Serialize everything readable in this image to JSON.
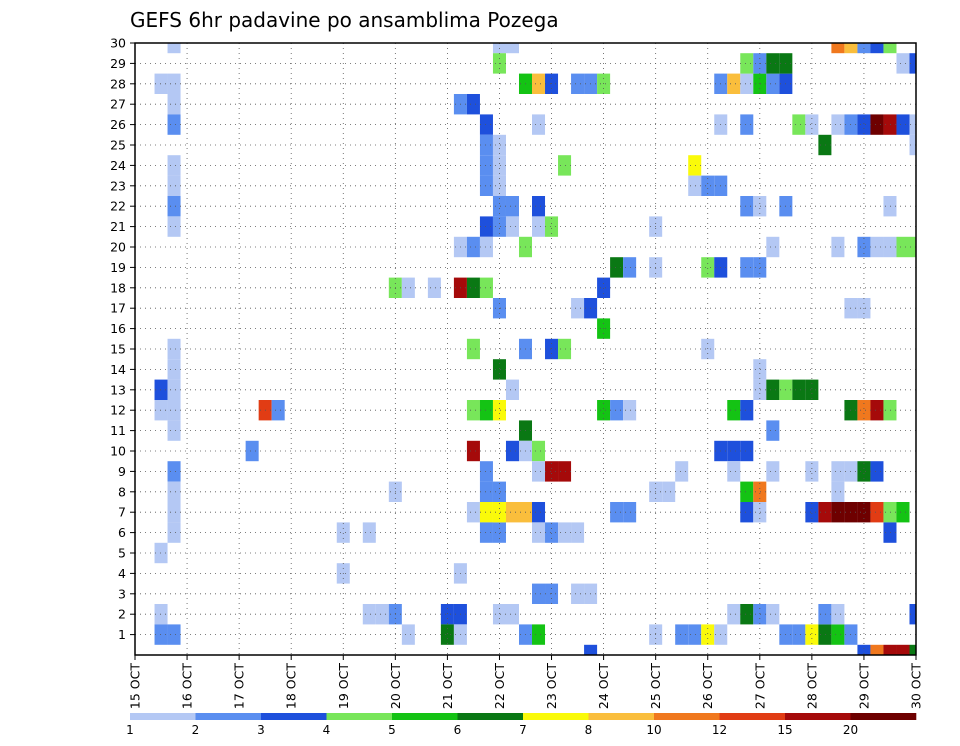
{
  "chart_data": {
    "type": "heatmap",
    "title": "GEFS 6hr padavine po ansamblima Pozega",
    "xlabel": "",
    "ylabel": "",
    "x_ticks": [
      "15 OCT",
      "16 OCT",
      "17 OCT",
      "18 OCT",
      "19 OCT",
      "20 OCT",
      "21 OCT",
      "22 OCT",
      "23 OCT",
      "24 OCT",
      "25 OCT",
      "26 OCT",
      "27 OCT",
      "28 OCT",
      "29 OCT",
      "30 OCT"
    ],
    "y_ticks": [
      1,
      2,
      3,
      4,
      5,
      6,
      7,
      8,
      9,
      10,
      11,
      12,
      13,
      14,
      15,
      16,
      17,
      18,
      19,
      20,
      21,
      22,
      23,
      24,
      25,
      26,
      27,
      28,
      29,
      30
    ],
    "xlim": [
      0,
      15
    ],
    "ylim": [
      0,
      30
    ],
    "grid": true,
    "legend_placement": "bottom",
    "colorbar": {
      "labels": [
        "1",
        "2",
        "3",
        "4",
        "5",
        "6",
        "7",
        "8",
        "10",
        "12",
        "15",
        "20"
      ],
      "colors": [
        "#b4c8f4",
        "#5a8ef0",
        "#1e50dc",
        "#78e65a",
        "#14c314",
        "#0a7814",
        "#fafa0a",
        "#fabe3c",
        "#f0781e",
        "#e13c14",
        "#a50a0a",
        "#6e0000"
      ]
    },
    "cells": [
      {
        "x": 0.75,
        "m": 30,
        "c": 1
      },
      {
        "x": 0.75,
        "m": 28,
        "c": 1
      },
      {
        "x": 0.5,
        "m": 28,
        "c": 1
      },
      {
        "x": 0.75,
        "m": 27,
        "c": 1
      },
      {
        "x": 0.75,
        "m": 26,
        "c": 2
      },
      {
        "x": 0.75,
        "m": 24,
        "c": 1
      },
      {
        "x": 0.75,
        "m": 23,
        "c": 1
      },
      {
        "x": 0.75,
        "m": 22,
        "c": 2
      },
      {
        "x": 0.75,
        "m": 21,
        "c": 1
      },
      {
        "x": 0.75,
        "m": 15,
        "c": 1
      },
      {
        "x": 0.75,
        "m": 14,
        "c": 1
      },
      {
        "x": 0.5,
        "m": 13,
        "c": 3
      },
      {
        "x": 0.5,
        "m": 12,
        "c": 1
      },
      {
        "x": 0.75,
        "m": 12,
        "c": 1
      },
      {
        "x": 0.75,
        "m": 13,
        "c": 1
      },
      {
        "x": 0.75,
        "m": 11,
        "c": 1
      },
      {
        "x": 0.75,
        "m": 9,
        "c": 2
      },
      {
        "x": 0.75,
        "m": 8,
        "c": 1
      },
      {
        "x": 0.75,
        "m": 7,
        "c": 1
      },
      {
        "x": 0.75,
        "m": 6,
        "c": 1
      },
      {
        "x": 0.5,
        "m": 5,
        "c": 1
      },
      {
        "x": 0.5,
        "m": 2,
        "c": 1
      },
      {
        "x": 0.5,
        "m": 1,
        "c": 2
      },
      {
        "x": 0.75,
        "m": 1,
        "c": 2
      },
      {
        "x": 2.5,
        "m": 12,
        "c": 10
      },
      {
        "x": 2.75,
        "m": 12,
        "c": 2
      },
      {
        "x": 2.25,
        "m": 10,
        "c": 2
      },
      {
        "x": 4.0,
        "m": 6,
        "c": 1
      },
      {
        "x": 4.5,
        "m": 6,
        "c": 1
      },
      {
        "x": 4.0,
        "m": 4,
        "c": 1
      },
      {
        "x": 4.5,
        "m": 2,
        "c": 1
      },
      {
        "x": 4.75,
        "m": 2,
        "c": 1
      },
      {
        "x": 5.0,
        "m": 18,
        "c": 4
      },
      {
        "x": 5.25,
        "m": 18,
        "c": 1
      },
      {
        "x": 5.75,
        "m": 18,
        "c": 1
      },
      {
        "x": 5.0,
        "m": 8,
        "c": 1
      },
      {
        "x": 5.0,
        "m": 2,
        "c": 2
      },
      {
        "x": 5.25,
        "m": 1,
        "c": 1
      },
      {
        "x": 6.0,
        "m": 2,
        "c": 3
      },
      {
        "x": 6.25,
        "m": 2,
        "c": 3
      },
      {
        "x": 6.0,
        "m": 1,
        "c": 6
      },
      {
        "x": 6.25,
        "m": 1,
        "c": 1
      },
      {
        "x": 6.25,
        "m": 4,
        "c": 1
      },
      {
        "x": 6.25,
        "m": 27,
        "c": 2
      },
      {
        "x": 6.5,
        "m": 27,
        "c": 3
      },
      {
        "x": 6.75,
        "m": 26,
        "c": 3
      },
      {
        "x": 6.75,
        "m": 25,
        "c": 2
      },
      {
        "x": 7.0,
        "m": 25,
        "c": 1
      },
      {
        "x": 6.75,
        "m": 24,
        "c": 2
      },
      {
        "x": 7.0,
        "m": 24,
        "c": 1
      },
      {
        "x": 6.75,
        "m": 23,
        "c": 2
      },
      {
        "x": 7.0,
        "m": 23,
        "c": 1
      },
      {
        "x": 7.0,
        "m": 22,
        "c": 2
      },
      {
        "x": 6.75,
        "m": 21,
        "c": 3
      },
      {
        "x": 7.0,
        "m": 21,
        "c": 2
      },
      {
        "x": 6.25,
        "m": 20,
        "c": 1
      },
      {
        "x": 6.5,
        "m": 20,
        "c": 2
      },
      {
        "x": 6.75,
        "m": 20,
        "c": 1
      },
      {
        "x": 6.25,
        "m": 18,
        "c": 11
      },
      {
        "x": 6.5,
        "m": 18,
        "c": 6
      },
      {
        "x": 6.75,
        "m": 18,
        "c": 4
      },
      {
        "x": 7.0,
        "m": 17,
        "c": 2
      },
      {
        "x": 6.5,
        "m": 15,
        "c": 4
      },
      {
        "x": 7.0,
        "m": 14,
        "c": 6
      },
      {
        "x": 6.5,
        "m": 12,
        "c": 4
      },
      {
        "x": 6.75,
        "m": 12,
        "c": 5
      },
      {
        "x": 7.0,
        "m": 12,
        "c": 7
      },
      {
        "x": 6.5,
        "m": 10,
        "c": 11
      },
      {
        "x": 6.75,
        "m": 9,
        "c": 2
      },
      {
        "x": 6.75,
        "m": 8,
        "c": 2
      },
      {
        "x": 7.0,
        "m": 8,
        "c": 2
      },
      {
        "x": 6.5,
        "m": 7,
        "c": 1
      },
      {
        "x": 6.75,
        "m": 7,
        "c": 7
      },
      {
        "x": 6.75,
        "m": 6,
        "c": 2
      },
      {
        "x": 7.0,
        "m": 6,
        "c": 2
      },
      {
        "x": 7.0,
        "m": 2,
        "c": 1
      },
      {
        "x": 7.25,
        "m": 2,
        "c": 1
      },
      {
        "x": 7.0,
        "m": 30,
        "c": 1
      },
      {
        "x": 7.25,
        "m": 30,
        "c": 1
      },
      {
        "x": 7.0,
        "m": 29,
        "c": 4
      },
      {
        "x": 7.5,
        "m": 28,
        "c": 5
      },
      {
        "x": 7.75,
        "m": 28,
        "c": 8
      },
      {
        "x": 8.0,
        "m": 28,
        "c": 3
      },
      {
        "x": 8.5,
        "m": 28,
        "c": 2
      },
      {
        "x": 8.75,
        "m": 28,
        "c": 2
      },
      {
        "x": 9.0,
        "m": 28,
        "c": 4
      },
      {
        "x": 7.75,
        "m": 26,
        "c": 1
      },
      {
        "x": 7.25,
        "m": 22,
        "c": 2
      },
      {
        "x": 7.75,
        "m": 22,
        "c": 3
      },
      {
        "x": 7.25,
        "m": 21,
        "c": 1
      },
      {
        "x": 7.75,
        "m": 21,
        "c": 1
      },
      {
        "x": 8.0,
        "m": 21,
        "c": 4
      },
      {
        "x": 7.5,
        "m": 20,
        "c": 4
      },
      {
        "x": 7.5,
        "m": 15,
        "c": 2
      },
      {
        "x": 8.0,
        "m": 15,
        "c": 3
      },
      {
        "x": 8.25,
        "m": 15,
        "c": 4
      },
      {
        "x": 7.5,
        "m": 11,
        "c": 6
      },
      {
        "x": 7.25,
        "m": 13,
        "c": 1
      },
      {
        "x": 7.25,
        "m": 10,
        "c": 3
      },
      {
        "x": 7.5,
        "m": 10,
        "c": 1
      },
      {
        "x": 7.75,
        "m": 10,
        "c": 4
      },
      {
        "x": 7.75,
        "m": 9,
        "c": 1
      },
      {
        "x": 8.0,
        "m": 9,
        "c": 11
      },
      {
        "x": 8.25,
        "m": 9,
        "c": 11
      },
      {
        "x": 7.0,
        "m": 7,
        "c": 7
      },
      {
        "x": 7.25,
        "m": 7,
        "c": 8
      },
      {
        "x": 7.5,
        "m": 7,
        "c": 8
      },
      {
        "x": 7.75,
        "m": 7,
        "c": 3
      },
      {
        "x": 7.75,
        "m": 6,
        "c": 1
      },
      {
        "x": 8.0,
        "m": 6,
        "c": 2
      },
      {
        "x": 8.25,
        "m": 6,
        "c": 1
      },
      {
        "x": 8.5,
        "m": 6,
        "c": 1
      },
      {
        "x": 7.75,
        "m": 3,
        "c": 2
      },
      {
        "x": 8.0,
        "m": 3,
        "c": 2
      },
      {
        "x": 8.5,
        "m": 3,
        "c": 1
      },
      {
        "x": 8.75,
        "m": 3,
        "c": 1
      },
      {
        "x": 7.5,
        "m": 1,
        "c": 2
      },
      {
        "x": 7.75,
        "m": 1,
        "c": 5
      },
      {
        "x": 8.75,
        "m": 0,
        "c": 3
      },
      {
        "x": 8.25,
        "m": 24,
        "c": 4
      },
      {
        "x": 8.5,
        "m": 17,
        "c": 1
      },
      {
        "x": 8.75,
        "m": 17,
        "c": 3
      },
      {
        "x": 9.0,
        "m": 16,
        "c": 5
      },
      {
        "x": 9.0,
        "m": 18,
        "c": 3
      },
      {
        "x": 9.25,
        "m": 19,
        "c": 6
      },
      {
        "x": 9.5,
        "m": 19,
        "c": 2
      },
      {
        "x": 10.0,
        "m": 19,
        "c": 1
      },
      {
        "x": 9.0,
        "m": 12,
        "c": 5
      },
      {
        "x": 9.25,
        "m": 12,
        "c": 2
      },
      {
        "x": 9.5,
        "m": 12,
        "c": 1
      },
      {
        "x": 9.25,
        "m": 7,
        "c": 2
      },
      {
        "x": 9.5,
        "m": 7,
        "c": 2
      },
      {
        "x": 10.0,
        "m": 8,
        "c": 1
      },
      {
        "x": 10.25,
        "m": 8,
        "c": 1
      },
      {
        "x": 10.5,
        "m": 9,
        "c": 1
      },
      {
        "x": 10.0,
        "m": 21,
        "c": 1
      },
      {
        "x": 10.0,
        "m": 1,
        "c": 1
      },
      {
        "x": 10.5,
        "m": 1,
        "c": 2
      },
      {
        "x": 10.75,
        "m": 1,
        "c": 2
      },
      {
        "x": 11.0,
        "m": 1,
        "c": 7
      },
      {
        "x": 11.25,
        "m": 1,
        "c": 1
      },
      {
        "x": 10.75,
        "m": 24,
        "c": 7
      },
      {
        "x": 10.75,
        "m": 23,
        "c": 1
      },
      {
        "x": 11.0,
        "m": 23,
        "c": 2
      },
      {
        "x": 11.25,
        "m": 23,
        "c": 2
      },
      {
        "x": 11.0,
        "m": 19,
        "c": 4
      },
      {
        "x": 11.25,
        "m": 19,
        "c": 3
      },
      {
        "x": 11.0,
        "m": 15,
        "c": 1
      },
      {
        "x": 11.25,
        "m": 10,
        "c": 3
      },
      {
        "x": 11.5,
        "m": 10,
        "c": 3
      },
      {
        "x": 11.75,
        "m": 10,
        "c": 3
      },
      {
        "x": 11.25,
        "m": 28,
        "c": 2
      },
      {
        "x": 11.5,
        "m": 28,
        "c": 8
      },
      {
        "x": 11.75,
        "m": 28,
        "c": 1
      },
      {
        "x": 12.0,
        "m": 28,
        "c": 5
      },
      {
        "x": 12.25,
        "m": 28,
        "c": 2
      },
      {
        "x": 12.5,
        "m": 28,
        "c": 3
      },
      {
        "x": 11.25,
        "m": 26,
        "c": 1
      },
      {
        "x": 11.75,
        "m": 26,
        "c": 2
      },
      {
        "x": 11.75,
        "m": 22,
        "c": 2
      },
      {
        "x": 12.0,
        "m": 22,
        "c": 1
      },
      {
        "x": 11.75,
        "m": 19,
        "c": 2
      },
      {
        "x": 12.0,
        "m": 19,
        "c": 2
      },
      {
        "x": 12.25,
        "m": 20,
        "c": 1
      },
      {
        "x": 11.5,
        "m": 12,
        "c": 5
      },
      {
        "x": 11.75,
        "m": 12,
        "c": 3
      },
      {
        "x": 12.0,
        "m": 14,
        "c": 1
      },
      {
        "x": 12.0,
        "m": 13,
        "c": 1
      },
      {
        "x": 11.5,
        "m": 9,
        "c": 1
      },
      {
        "x": 11.75,
        "m": 8,
        "c": 5
      },
      {
        "x": 12.0,
        "m": 8,
        "c": 9
      },
      {
        "x": 11.75,
        "m": 7,
        "c": 3
      },
      {
        "x": 12.0,
        "m": 7,
        "c": 1
      },
      {
        "x": 11.5,
        "m": 2,
        "c": 1
      },
      {
        "x": 11.75,
        "m": 2,
        "c": 6
      },
      {
        "x": 12.0,
        "m": 2,
        "c": 2
      },
      {
        "x": 12.25,
        "m": 2,
        "c": 1
      },
      {
        "x": 11.75,
        "m": 29,
        "c": 4
      },
      {
        "x": 12.0,
        "m": 29,
        "c": 2
      },
      {
        "x": 12.25,
        "m": 29,
        "c": 6
      },
      {
        "x": 12.5,
        "m": 29,
        "c": 6
      },
      {
        "x": 12.25,
        "m": 11,
        "c": 2
      },
      {
        "x": 12.25,
        "m": 9,
        "c": 1
      },
      {
        "x": 12.5,
        "m": 22,
        "c": 2
      },
      {
        "x": 12.25,
        "m": 13,
        "c": 6
      },
      {
        "x": 12.5,
        "m": 13,
        "c": 4
      },
      {
        "x": 12.75,
        "m": 13,
        "c": 6
      },
      {
        "x": 13.0,
        "m": 13,
        "c": 6
      },
      {
        "x": 12.5,
        "m": 1,
        "c": 2
      },
      {
        "x": 12.75,
        "m": 1,
        "c": 2
      },
      {
        "x": 13.0,
        "m": 1,
        "c": 7
      },
      {
        "x": 13.25,
        "m": 1,
        "c": 6
      },
      {
        "x": 13.5,
        "m": 1,
        "c": 5
      },
      {
        "x": 13.75,
        "m": 1,
        "c": 2
      },
      {
        "x": 12.75,
        "m": 26,
        "c": 4
      },
      {
        "x": 13.0,
        "m": 26,
        "c": 1
      },
      {
        "x": 13.5,
        "m": 26,
        "c": 1
      },
      {
        "x": 13.75,
        "m": 26,
        "c": 2
      },
      {
        "x": 14.0,
        "m": 26,
        "c": 3
      },
      {
        "x": 14.25,
        "m": 26,
        "c": 12
      },
      {
        "x": 14.5,
        "m": 26,
        "c": 11
      },
      {
        "x": 14.75,
        "m": 26,
        "c": 3
      },
      {
        "x": 15.0,
        "m": 26,
        "c": 1
      },
      {
        "x": 13.25,
        "m": 25,
        "c": 6
      },
      {
        "x": 13.5,
        "m": 30,
        "c": 9
      },
      {
        "x": 13.75,
        "m": 30,
        "c": 8
      },
      {
        "x": 14.0,
        "m": 30,
        "c": 2
      },
      {
        "x": 14.25,
        "m": 30,
        "c": 3
      },
      {
        "x": 14.5,
        "m": 30,
        "c": 4
      },
      {
        "x": 14.0,
        "m": 20,
        "c": 2
      },
      {
        "x": 14.25,
        "m": 20,
        "c": 1
      },
      {
        "x": 14.5,
        "m": 20,
        "c": 1
      },
      {
        "x": 14.75,
        "m": 20,
        "c": 4
      },
      {
        "x": 15.0,
        "m": 20,
        "c": 4
      },
      {
        "x": 13.5,
        "m": 20,
        "c": 1
      },
      {
        "x": 14.5,
        "m": 22,
        "c": 1
      },
      {
        "x": 13.75,
        "m": 17,
        "c": 1
      },
      {
        "x": 14.0,
        "m": 17,
        "c": 1
      },
      {
        "x": 13.0,
        "m": 9,
        "c": 1
      },
      {
        "x": 13.5,
        "m": 9,
        "c": 1
      },
      {
        "x": 13.75,
        "m": 9,
        "c": 1
      },
      {
        "x": 14.0,
        "m": 9,
        "c": 6
      },
      {
        "x": 14.25,
        "m": 9,
        "c": 3
      },
      {
        "x": 13.5,
        "m": 8,
        "c": 1
      },
      {
        "x": 13.0,
        "m": 7,
        "c": 3
      },
      {
        "x": 13.25,
        "m": 7,
        "c": 11
      },
      {
        "x": 13.5,
        "m": 7,
        "c": 12
      },
      {
        "x": 13.75,
        "m": 7,
        "c": 12
      },
      {
        "x": 14.0,
        "m": 7,
        "c": 12
      },
      {
        "x": 14.25,
        "m": 7,
        "c": 10
      },
      {
        "x": 14.5,
        "m": 7,
        "c": 4
      },
      {
        "x": 14.75,
        "m": 7,
        "c": 5
      },
      {
        "x": 14.5,
        "m": 6,
        "c": 3
      },
      {
        "x": 13.75,
        "m": 12,
        "c": 6
      },
      {
        "x": 14.0,
        "m": 12,
        "c": 9
      },
      {
        "x": 14.25,
        "m": 12,
        "c": 11
      },
      {
        "x": 14.5,
        "m": 12,
        "c": 4
      },
      {
        "x": 13.25,
        "m": 2,
        "c": 2
      },
      {
        "x": 13.5,
        "m": 2,
        "c": 1
      },
      {
        "x": 14.0,
        "m": 0,
        "c": 3
      },
      {
        "x": 14.25,
        "m": 0,
        "c": 9
      },
      {
        "x": 14.5,
        "m": 0,
        "c": 11
      },
      {
        "x": 14.75,
        "m": 0,
        "c": 11
      },
      {
        "x": 15.0,
        "m": 0,
        "c": 6
      },
      {
        "x": 15.0,
        "m": 29,
        "c": 3
      },
      {
        "x": 14.75,
        "m": 29,
        "c": 1
      },
      {
        "x": 15.0,
        "m": 25,
        "c": 1
      },
      {
        "x": 15.0,
        "m": 2,
        "c": 3
      }
    ]
  }
}
